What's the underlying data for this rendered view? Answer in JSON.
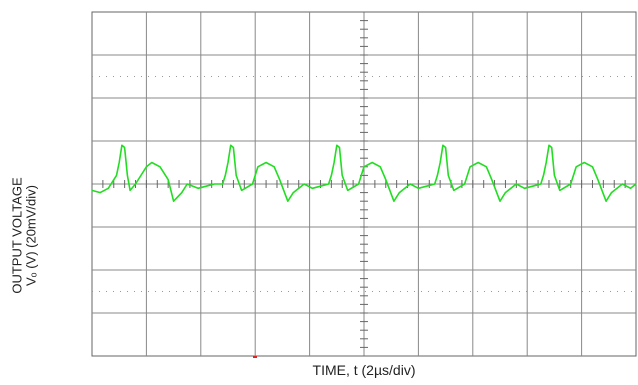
{
  "chart_data": {
    "type": "line",
    "title": "",
    "xlabel": "TIME, t (2µs/div)",
    "ylabel": [
      "OUTPUT VOLTAGE",
      "Vₒ (V) (20mV/div)"
    ],
    "grid": true,
    "x_divisions": 10,
    "y_divisions": 8,
    "xlim": [
      0,
      20
    ],
    "ylim": [
      -80,
      80
    ],
    "trace_color": "#22dd22",
    "series": [
      {
        "x": [
          0.0,
          0.3,
          0.6,
          0.9,
          1.0,
          1.1,
          1.2,
          1.3,
          1.4,
          1.6,
          2.0,
          2.2,
          2.5,
          2.8,
          3.0,
          3.3,
          3.5,
          3.9,
          4.2,
          4.5,
          4.8,
          4.9,
          5.0,
          5.1,
          5.2,
          5.3,
          5.5,
          5.9,
          6.1,
          6.4,
          6.7,
          6.9,
          7.2,
          7.4,
          7.8,
          8.1,
          8.4,
          8.7,
          8.8,
          8.9,
          9.0,
          9.1,
          9.2,
          9.4,
          9.8,
          10.0,
          10.3,
          10.6,
          10.8,
          11.1,
          11.3,
          11.7,
          12.0,
          12.3,
          12.6,
          12.7,
          12.8,
          12.9,
          13.0,
          13.1,
          13.3,
          13.7,
          13.9,
          14.2,
          14.5,
          14.7,
          15.0,
          15.2,
          15.6,
          15.9,
          16.2,
          16.5,
          16.6,
          16.7,
          16.8,
          16.9,
          17.0,
          17.2,
          17.6,
          17.8,
          18.1,
          18.4,
          18.6,
          18.9,
          19.1,
          19.5,
          19.8,
          20.0
        ],
        "y": [
          -3,
          -4,
          -2,
          4,
          10,
          18,
          17,
          4,
          -3,
          0,
          8,
          10,
          8,
          2,
          -8,
          -4,
          0,
          -2,
          -1,
          0,
          0,
          4,
          10,
          18,
          17,
          4,
          -3,
          0,
          8,
          10,
          8,
          2,
          -8,
          -4,
          0,
          -2,
          -1,
          0,
          4,
          10,
          18,
          17,
          4,
          -3,
          0,
          8,
          10,
          8,
          2,
          -8,
          -4,
          0,
          -2,
          -1,
          0,
          4,
          10,
          18,
          17,
          4,
          -3,
          0,
          8,
          10,
          8,
          2,
          -8,
          -4,
          0,
          -2,
          -1,
          0,
          4,
          10,
          18,
          17,
          4,
          -3,
          0,
          8,
          10,
          8,
          2,
          -8,
          -4,
          0,
          -2,
          0
        ]
      }
    ]
  }
}
